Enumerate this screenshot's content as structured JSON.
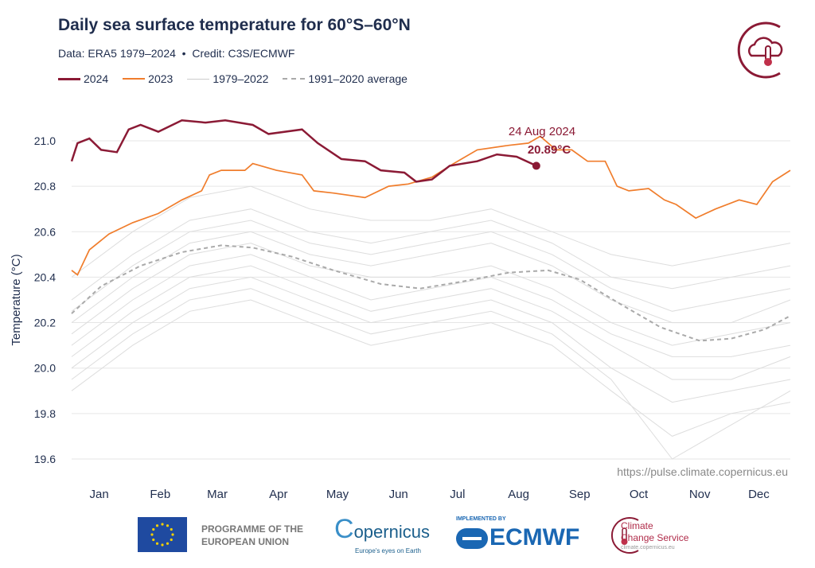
{
  "header": {
    "title": "Daily sea surface temperature for 60°S–60°N",
    "subtitle": "Data: ERA5 1979–2024  •  Credit: C3S/ECMWF"
  },
  "legend": [
    {
      "label": "2024",
      "color": "#8b1a35",
      "style": "solid"
    },
    {
      "label": "2023",
      "color": "#f07d2c",
      "style": "solid"
    },
    {
      "label": "1979–2022",
      "color": "#dddddd",
      "style": "solid"
    },
    {
      "label": "1991–2020 average",
      "color": "#aaaaaa",
      "style": "dashed"
    }
  ],
  "annotation": {
    "date": "24 Aug 2024",
    "value": "20.89°C"
  },
  "source_url": "https://pulse.climate.copernicus.eu",
  "footer": {
    "eu": "PROGRAMME OF THE EUROPEAN UNION",
    "copernicus": "opernicus",
    "copernicus_c": "C",
    "copernicus_tag": "Europe's eyes on Earth",
    "implemented": "IMPLEMENTED BY",
    "ecmwf": "ECMWF",
    "c3s_line1": "Climate",
    "c3s_line2": "Change Service",
    "c3s_url": "climate.copernicus.eu"
  },
  "chart_data": {
    "type": "line",
    "title": "Daily sea surface temperature for 60°S–60°N",
    "ylabel": "Temperature (°C)",
    "xlabel": "",
    "ylim": [
      19.6,
      21.05
    ],
    "yticks": [
      "21.0",
      "20.8",
      "20.6",
      "20.4",
      "20.2",
      "20.0",
      "19.8",
      "19.6"
    ],
    "xticks": [
      "Jan",
      "Feb",
      "Mar",
      "Apr",
      "May",
      "Jun",
      "Jul",
      "Aug",
      "Sep",
      "Oct",
      "Nov",
      "Dec"
    ],
    "grid": "horizontal",
    "legend_position": "top-left",
    "series": [
      {
        "name": "2024",
        "color": "#8b1a35",
        "points": [
          [
            "01-01",
            20.91
          ],
          [
            "01-04",
            20.99
          ],
          [
            "01-10",
            21.01
          ],
          [
            "01-16",
            20.96
          ],
          [
            "01-24",
            20.95
          ],
          [
            "01-30",
            21.05
          ],
          [
            "02-05",
            21.07
          ],
          [
            "02-14",
            21.04
          ],
          [
            "02-26",
            21.09
          ],
          [
            "03-09",
            21.08
          ],
          [
            "03-19",
            21.09
          ],
          [
            "04-02",
            21.07
          ],
          [
            "04-10",
            21.03
          ],
          [
            "04-27",
            21.05
          ],
          [
            "05-05",
            20.99
          ],
          [
            "05-17",
            20.92
          ],
          [
            "05-29",
            20.91
          ],
          [
            "06-06",
            20.87
          ],
          [
            "06-18",
            20.86
          ],
          [
            "06-24",
            20.82
          ],
          [
            "07-02",
            20.83
          ],
          [
            "07-11",
            20.89
          ],
          [
            "07-25",
            20.91
          ],
          [
            "08-04",
            20.94
          ],
          [
            "08-14",
            20.93
          ],
          [
            "08-24",
            20.89
          ]
        ]
      },
      {
        "name": "2023",
        "color": "#f07d2c",
        "points": [
          [
            "01-01",
            20.43
          ],
          [
            "01-04",
            20.41
          ],
          [
            "01-10",
            20.52
          ],
          [
            "01-20",
            20.59
          ],
          [
            "02-01",
            20.64
          ],
          [
            "02-14",
            20.68
          ],
          [
            "02-26",
            20.74
          ],
          [
            "03-07",
            20.78
          ],
          [
            "03-11",
            20.85
          ],
          [
            "03-17",
            20.87
          ],
          [
            "03-29",
            20.87
          ],
          [
            "04-02",
            20.9
          ],
          [
            "04-14",
            20.87
          ],
          [
            "04-27",
            20.85
          ],
          [
            "05-03",
            20.78
          ],
          [
            "05-13",
            20.77
          ],
          [
            "05-29",
            20.75
          ],
          [
            "06-10",
            20.8
          ],
          [
            "06-20",
            20.81
          ],
          [
            "07-02",
            20.84
          ],
          [
            "07-13",
            20.9
          ],
          [
            "07-25",
            20.96
          ],
          [
            "08-10",
            20.98
          ],
          [
            "08-20",
            20.99
          ],
          [
            "08-26",
            21.02
          ],
          [
            "09-03",
            20.96
          ],
          [
            "09-11",
            20.96
          ],
          [
            "09-19",
            20.91
          ],
          [
            "09-28",
            20.91
          ],
          [
            "10-04",
            20.8
          ],
          [
            "10-10",
            20.78
          ],
          [
            "10-20",
            20.79
          ],
          [
            "10-28",
            20.74
          ],
          [
            "11-03",
            20.72
          ],
          [
            "11-13",
            20.66
          ],
          [
            "11-23",
            20.7
          ],
          [
            "12-05",
            20.74
          ],
          [
            "12-14",
            20.72
          ],
          [
            "12-22",
            20.82
          ],
          [
            "12-31",
            20.87
          ]
        ]
      },
      {
        "name": "1991–2020 average",
        "color": "#aaaaaa",
        "dashed": true,
        "points": [
          [
            "01-01",
            20.24
          ],
          [
            "01-16",
            20.36
          ],
          [
            "02-05",
            20.45
          ],
          [
            "02-26",
            20.51
          ],
          [
            "03-17",
            20.54
          ],
          [
            "04-02",
            20.53
          ],
          [
            "04-22",
            20.49
          ],
          [
            "05-13",
            20.43
          ],
          [
            "06-06",
            20.37
          ],
          [
            "06-26",
            20.35
          ],
          [
            "07-17",
            20.38
          ],
          [
            "08-10",
            20.42
          ],
          [
            "08-30",
            20.43
          ],
          [
            "09-15",
            20.39
          ],
          [
            "10-06",
            20.28
          ],
          [
            "10-26",
            20.18
          ],
          [
            "11-15",
            20.12
          ],
          [
            "12-01",
            20.13
          ],
          [
            "12-18",
            20.17
          ],
          [
            "12-31",
            20.23
          ]
        ]
      }
    ],
    "background_years": {
      "name": "1979–2022",
      "color": "#dddddd",
      "x": [
        "01-01",
        "02-01",
        "03-01",
        "04-01",
        "05-01",
        "06-01",
        "07-01",
        "08-01",
        "09-01",
        "10-01",
        "11-01",
        "12-01",
        "12-31"
      ],
      "series": [
        [
          20.1,
          20.3,
          20.45,
          20.5,
          20.4,
          20.3,
          20.35,
          20.4,
          20.3,
          20.15,
          20.05,
          20.05,
          20.1
        ],
        [
          20.0,
          20.2,
          20.35,
          20.4,
          20.3,
          20.2,
          20.25,
          20.3,
          20.2,
          20.0,
          19.85,
          19.9,
          19.95
        ],
        [
          20.2,
          20.4,
          20.55,
          20.6,
          20.5,
          20.45,
          20.5,
          20.55,
          20.45,
          20.3,
          20.2,
          20.2,
          20.3
        ],
        [
          20.3,
          20.5,
          20.65,
          20.7,
          20.6,
          20.55,
          20.6,
          20.65,
          20.55,
          20.4,
          20.35,
          20.4,
          20.45
        ],
        [
          19.9,
          20.1,
          20.25,
          20.3,
          20.2,
          20.1,
          20.15,
          20.2,
          20.1,
          19.9,
          19.7,
          19.8,
          19.85
        ],
        [
          20.05,
          20.25,
          20.4,
          20.45,
          20.35,
          20.25,
          20.3,
          20.35,
          20.25,
          20.1,
          19.95,
          19.95,
          20.05
        ],
        [
          20.4,
          20.6,
          20.75,
          20.8,
          20.7,
          20.65,
          20.65,
          20.7,
          20.6,
          20.5,
          20.45,
          20.5,
          20.55
        ],
        [
          20.15,
          20.35,
          20.5,
          20.55,
          20.45,
          20.4,
          20.4,
          20.45,
          20.35,
          20.2,
          20.1,
          20.15,
          20.2
        ],
        [
          19.95,
          20.15,
          20.3,
          20.35,
          20.25,
          20.15,
          20.2,
          20.25,
          20.15,
          19.95,
          19.6,
          19.75,
          19.9
        ],
        [
          20.25,
          20.45,
          20.6,
          20.65,
          20.55,
          20.5,
          20.55,
          20.6,
          20.5,
          20.35,
          20.25,
          20.3,
          20.35
        ]
      ]
    }
  }
}
